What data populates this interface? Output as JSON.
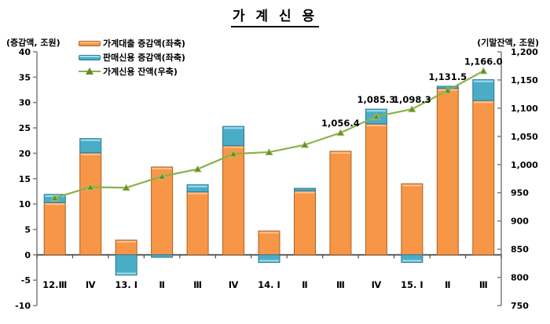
{
  "title": "가 계 신 용",
  "legend": {
    "position": "top-left",
    "items": [
      {
        "label": "가계대출 증감액(좌축)",
        "swatch": "orange-bar"
      },
      {
        "label": "판매신용 증감액(좌축)",
        "swatch": "blue-bar"
      },
      {
        "label": "가계신용 잔액(우축)",
        "swatch": "green-line-triangle-marker"
      }
    ]
  },
  "colors": {
    "bar1_fill": "#F79646",
    "bar1_edge": "#A9611F",
    "bar1_bevel": "#FBBE8B",
    "bar2_fill": "#4BACC6",
    "bar2_edge": "#2B7A94",
    "bar2_bevel": "#98DCEC",
    "line": "#8DB04B",
    "marker_fill": "#688A2E",
    "marker_edge": "#A6C968",
    "axis_line": "#7F7F7F",
    "baseline": "#555555",
    "text": "#000000"
  },
  "chart_data": {
    "type": "bar",
    "subtype": "stacked-bars-with-secondary-axis-line",
    "title": "가계신용",
    "categories": [
      "12.Ⅲ",
      "Ⅳ",
      "13. Ⅰ",
      "Ⅱ",
      "Ⅲ",
      "Ⅳ",
      "14. Ⅰ",
      "Ⅱ",
      "Ⅲ",
      "Ⅳ",
      "15. Ⅰ",
      "Ⅱ",
      "Ⅲ"
    ],
    "series": [
      {
        "name": "가계대출 증감액(좌축)",
        "type": "bar",
        "axis": "left",
        "values": [
          10.3,
          20.1,
          2.9,
          17.3,
          12.4,
          21.5,
          4.7,
          12.6,
          20.4,
          25.8,
          14.0,
          32.8,
          30.4
        ]
      },
      {
        "name": "판매신용 증감액(좌축)",
        "type": "bar",
        "axis": "left",
        "values": [
          1.6,
          2.8,
          -4.0,
          -0.5,
          1.4,
          3.8,
          -1.5,
          0.5,
          0.0,
          2.9,
          -1.5,
          0.4,
          4.1
        ]
      },
      {
        "name": "가계신용 잔액(우축)",
        "type": "line",
        "axis": "right",
        "values": [
          941,
          960,
          959,
          979,
          992,
          1019,
          1022,
          1035,
          1056.4,
          1085.3,
          1098.3,
          1131.5,
          1166.0
        ],
        "point_labels": [
          null,
          null,
          null,
          null,
          null,
          null,
          null,
          null,
          "1,056.4",
          "1,085.3",
          "1,098.3",
          "1,131.5",
          "1,166.0"
        ]
      }
    ],
    "left_axis": {
      "caption": "(증감액, 조원)",
      "min": -10,
      "max": 40,
      "step": 5,
      "ticks": [
        "40",
        "35",
        "30",
        "25",
        "20",
        "15",
        "10",
        "5",
        "0",
        "-5",
        "-10"
      ]
    },
    "right_axis": {
      "caption": "(기말잔액, 조원)",
      "min": 750,
      "max": 1200,
      "step": 50,
      "ticks": [
        "1,200",
        "1,150",
        "1,100",
        "1,050",
        "1,000",
        "950",
        "900",
        "850",
        "800",
        "750"
      ]
    },
    "grid": false,
    "legend_position": "top-left"
  }
}
